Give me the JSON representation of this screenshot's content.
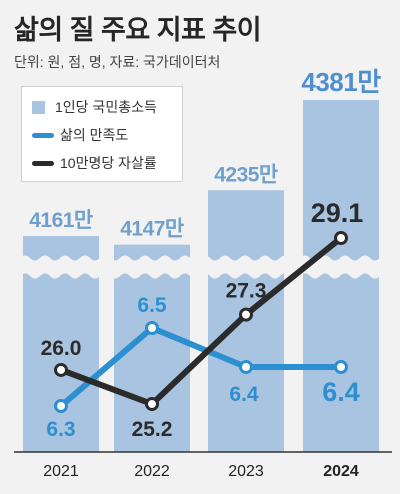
{
  "title": "삶의 질 주요 지표 추이",
  "subtitle": "단위: 원, 점, 명, 자료: 국가데이터처",
  "legend": {
    "income": "1인당 국민총소득",
    "satisfaction": "삶의 만족도",
    "suicide": "10만명당 자살률"
  },
  "colors": {
    "background": "#f2f2f2",
    "bar": "#a9c4e0",
    "bar_label": "#6f9fcd",
    "bar_label_latest": "#4f8fd0",
    "satisfaction": "#2b8fd0",
    "suicide": "#2b2b2b"
  },
  "chart_data": {
    "type": "bar",
    "categories": [
      "2021",
      "2022",
      "2023",
      "2024"
    ],
    "highlight_category": "2024",
    "axis_break": true,
    "series": [
      {
        "name": "1인당 국민총소득",
        "type": "bar",
        "values": [
          4161,
          4147,
          4235,
          4381
        ],
        "labels": [
          "4161만",
          "4147만",
          "4235만",
          "4381만"
        ]
      },
      {
        "name": "삶의 만족도",
        "type": "line",
        "values": [
          6.3,
          6.5,
          6.4,
          6.4
        ],
        "labels": [
          "6.3",
          "6.5",
          "6.4",
          "6.4"
        ]
      },
      {
        "name": "10만명당 자살률",
        "type": "line",
        "values": [
          26.0,
          25.2,
          27.3,
          29.1
        ],
        "labels": [
          "26.0",
          "25.2",
          "27.3",
          "29.1"
        ]
      }
    ]
  }
}
